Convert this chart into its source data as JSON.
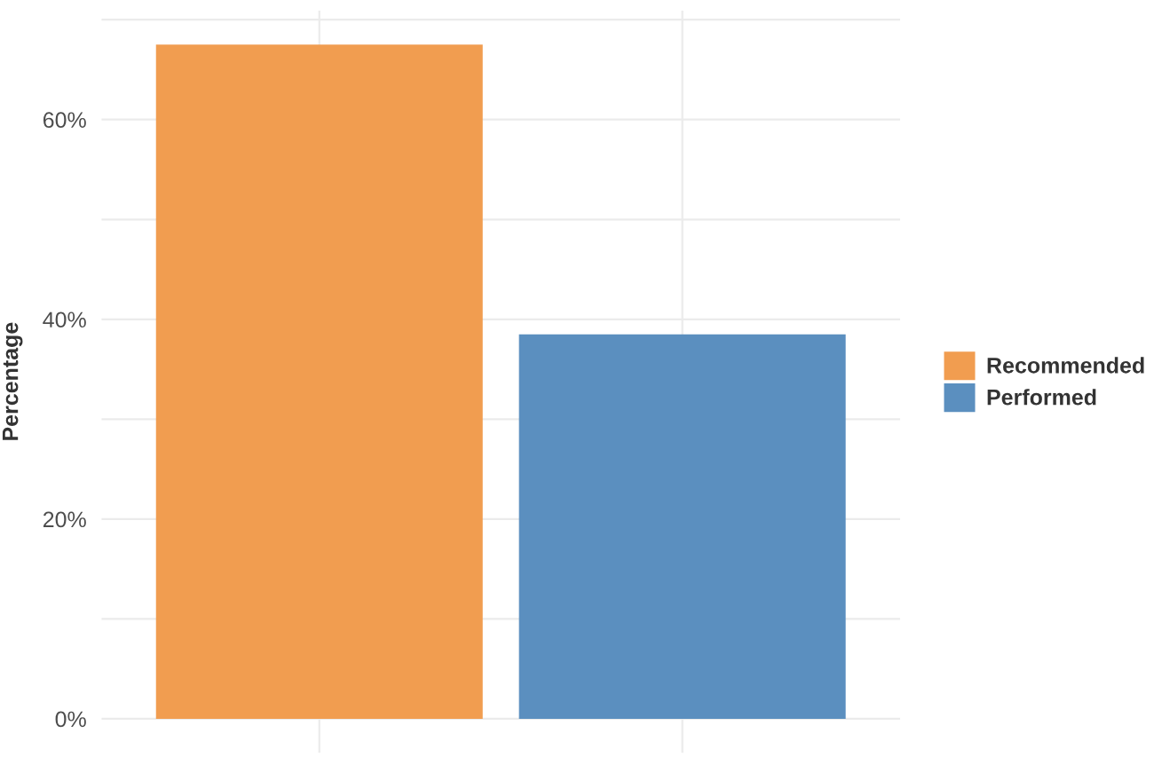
{
  "chart_data": {
    "type": "bar",
    "ylabel": "Percentage",
    "categories": [
      null,
      null
    ],
    "series": [
      {
        "name": "Recommended",
        "color": "#f19d50",
        "values": [
          67.5,
          null
        ]
      },
      {
        "name": "Performed",
        "color": "#5b8fbf",
        "values": [
          null,
          38.5
        ]
      }
    ],
    "ylim": [
      -3.4,
      70.9
    ],
    "yticks": [
      {
        "value": 0,
        "label": "0%"
      },
      {
        "value": 10,
        "label": null
      },
      {
        "value": 20,
        "label": "20%"
      },
      {
        "value": 30,
        "label": null
      },
      {
        "value": 40,
        "label": "40%"
      },
      {
        "value": 50,
        "label": null
      },
      {
        "value": 60,
        "label": "60%"
      },
      {
        "value": 70,
        "label": null
      }
    ],
    "grid": true,
    "legend": "right",
    "tick_labels": "y"
  }
}
